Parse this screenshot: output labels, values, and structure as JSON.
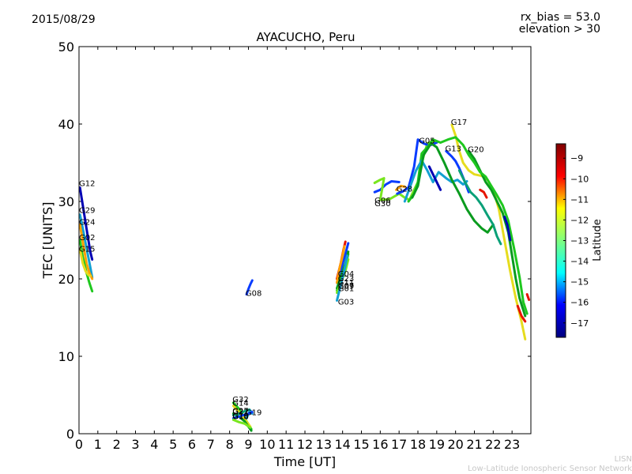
{
  "header": {
    "date": "2015/08/29",
    "rx_bias": "rx_bias = 53.0",
    "elevation": "elevation > 30"
  },
  "footer": {
    "org_short": "LISN",
    "org_long": "Low-Latitude Ionospheric Sensor Network"
  },
  "colors": {
    "c_dblue": "#0000b4",
    "c_blue": "#0a3cff",
    "c_cyan": "#12a0d2",
    "c_teal": "#0aa078",
    "c_dgreen": "#0a9b1e",
    "c_green": "#1ec81e",
    "c_lgreen": "#78e61e",
    "c_yellow": "#e6dc1e",
    "c_orange": "#ffa000",
    "c_red": "#e61400"
  },
  "chart_data": {
    "type": "line",
    "title": "AYACUCHO, Peru",
    "xlabel": "Time [UT]",
    "ylabel": "TEC [UNITS]",
    "xlim": [
      0,
      24
    ],
    "ylim": [
      0,
      50
    ],
    "xticks": [
      "0",
      "1",
      "2",
      "3",
      "4",
      "5",
      "6",
      "7",
      "8",
      "9",
      "10",
      "11",
      "12",
      "13",
      "14",
      "15",
      "16",
      "17",
      "18",
      "19",
      "20",
      "21",
      "22",
      "23"
    ],
    "yticks": [
      "0",
      "10",
      "20",
      "30",
      "40",
      "50"
    ],
    "colorbar": {
      "label": "Latitude",
      "ticks": [
        "-9",
        "-10",
        "-11",
        "-12",
        "-13",
        "-14",
        "-15",
        "-16",
        "-17"
      ],
      "tick_values": [
        -9,
        -10,
        -11,
        -12,
        -13,
        -14,
        -15,
        -16,
        -17
      ],
      "range": [
        -17.7,
        -8.3
      ],
      "stops": [
        "#00007f",
        "#0000ff",
        "#00ffff",
        "#7fff7f",
        "#ffff00",
        "#ff0000",
        "#7f0000"
      ]
    },
    "series": [
      {
        "name": "G12",
        "color": "c_dblue",
        "label_at": [
          0.0,
          32.0
        ],
        "points": [
          [
            0.05,
            31.8
          ],
          [
            0.2,
            29.5
          ],
          [
            0.4,
            26.5
          ],
          [
            0.6,
            23.5
          ],
          [
            0.7,
            22.5
          ]
        ]
      },
      {
        "name": "G29",
        "color": "c_cyan",
        "label_at": [
          0.0,
          28.5
        ],
        "points": [
          [
            0.05,
            28.3
          ],
          [
            0.2,
            26.5
          ],
          [
            0.4,
            24.0
          ],
          [
            0.6,
            21.5
          ],
          [
            0.7,
            20.2
          ]
        ]
      },
      {
        "name": "G24",
        "color": "c_orange",
        "label_at": [
          0.0,
          27.0
        ],
        "points": [
          [
            0.05,
            27.0
          ],
          [
            0.2,
            24.8
          ],
          [
            0.4,
            22.0
          ],
          [
            0.55,
            20.8
          ],
          [
            0.7,
            20.0
          ]
        ]
      },
      {
        "name": "G02",
        "color": "c_green",
        "label_at": [
          0.0,
          25.0
        ],
        "points": [
          [
            0.05,
            25.0
          ],
          [
            0.2,
            22.8
          ],
          [
            0.4,
            20.8
          ],
          [
            0.55,
            19.5
          ],
          [
            0.7,
            18.4
          ]
        ]
      },
      {
        "name": "G15",
        "color": "c_yellow",
        "label_at": [
          0.0,
          23.5
        ],
        "points": [
          [
            0.05,
            23.8
          ],
          [
            0.2,
            22.0
          ],
          [
            0.35,
            21.0
          ],
          [
            0.5,
            20.5
          ],
          [
            0.6,
            20.4
          ]
        ]
      },
      {
        "name": "G08",
        "color": "c_blue",
        "label_at": [
          8.85,
          17.8
        ],
        "points": [
          [
            8.9,
            18.0
          ],
          [
            9.0,
            18.7
          ],
          [
            9.1,
            19.3
          ],
          [
            9.2,
            19.8
          ]
        ]
      },
      {
        "name": "G32",
        "color": "c_green",
        "label_at": [
          8.15,
          4.1
        ],
        "points": [
          [
            8.2,
            4.0
          ],
          [
            8.5,
            3.2
          ],
          [
            8.8,
            2.0
          ],
          [
            9.0,
            1.2
          ],
          [
            9.15,
            0.6
          ]
        ]
      },
      {
        "name": "G14",
        "color": "c_yellow",
        "label_at": [
          8.15,
          3.6
        ],
        "points": [
          [
            8.2,
            3.6
          ],
          [
            8.5,
            2.8
          ],
          [
            8.8,
            1.9
          ],
          [
            9.1,
            0.9
          ]
        ]
      },
      {
        "name": "G22",
        "color": "c_dgreen",
        "label_at": [
          8.15,
          2.5
        ],
        "points": [
          [
            8.2,
            2.6
          ],
          [
            8.5,
            2.2
          ],
          [
            8.8,
            1.6
          ],
          [
            9.15,
            0.4
          ]
        ]
      },
      {
        "name": "G27",
        "color": "c_teal",
        "label_at": [
          8.15,
          2.6
        ],
        "points": [
          [
            8.2,
            2.4
          ],
          [
            8.5,
            2.6
          ],
          [
            8.8,
            2.9
          ],
          [
            9.05,
            3.1
          ]
        ]
      },
      {
        "name": "G19",
        "color": "c_cyan",
        "label_at": [
          8.85,
          2.4
        ],
        "points": [
          [
            8.9,
            2.0
          ],
          [
            9.0,
            2.6
          ],
          [
            9.1,
            3.0
          ],
          [
            9.2,
            2.6
          ]
        ]
      },
      {
        "name": "G18",
        "color": "c_blue",
        "label_at": [
          8.15,
          1.9
        ],
        "points": [
          [
            8.2,
            2.0
          ],
          [
            8.6,
            2.3
          ],
          [
            9.0,
            2.6
          ],
          [
            9.2,
            2.8
          ]
        ]
      },
      {
        "name": "G16",
        "color": "c_lgreen",
        "label_at": [
          8.15,
          2.0
        ],
        "points": [
          [
            8.2,
            1.8
          ],
          [
            8.5,
            1.5
          ],
          [
            8.8,
            1.3
          ],
          [
            9.1,
            0.8
          ]
        ]
      },
      {
        "name": "G04",
        "color": "c_red",
        "label_at": [
          13.75,
          20.3
        ],
        "points": [
          [
            13.7,
            20.0
          ],
          [
            13.9,
            22.0
          ],
          [
            14.05,
            23.8
          ],
          [
            14.15,
            24.8
          ]
        ]
      },
      {
        "name": "G23",
        "color": "c_blue",
        "label_at": [
          13.75,
          19.7
        ],
        "points": [
          [
            13.7,
            19.5
          ],
          [
            13.95,
            21.5
          ],
          [
            14.15,
            23.2
          ],
          [
            14.3,
            24.6
          ]
        ]
      },
      {
        "name": "G11",
        "color": "c_orange",
        "label_at": [
          13.75,
          19.2
        ],
        "points": [
          [
            13.7,
            19.5
          ],
          [
            13.85,
            21.5
          ],
          [
            14.0,
            23.0
          ],
          [
            14.1,
            24.2
          ]
        ]
      },
      {
        "name": "G07",
        "color": "c_green",
        "label_at": [
          13.75,
          18.8
        ],
        "points": [
          [
            13.7,
            18.5
          ],
          [
            13.95,
            20.0
          ],
          [
            14.15,
            21.5
          ],
          [
            14.3,
            23.2
          ]
        ]
      },
      {
        "name": "G09",
        "color": "c_dgreen",
        "label_at": [
          13.75,
          18.7
        ],
        "points": [
          [
            13.7,
            18.8
          ],
          [
            13.95,
            20.6
          ],
          [
            14.15,
            22.0
          ],
          [
            14.3,
            23.5
          ]
        ]
      },
      {
        "name": "G01",
        "color": "c_lgreen",
        "label_at": [
          13.75,
          18.4
        ],
        "points": [
          [
            13.7,
            18.2
          ],
          [
            13.95,
            19.8
          ],
          [
            14.15,
            21.0
          ],
          [
            14.3,
            22.5
          ]
        ]
      },
      {
        "name": "G03",
        "color": "c_cyan",
        "label_at": [
          13.75,
          16.7
        ],
        "points": [
          [
            13.7,
            17.2
          ],
          [
            13.9,
            19.2
          ],
          [
            14.1,
            21.2
          ],
          [
            14.25,
            23.0
          ]
        ]
      },
      {
        "name": "G06",
        "color": "c_blue",
        "label_at": [
          15.7,
          29.8
        ],
        "points": [
          [
            15.7,
            31.2
          ],
          [
            16.0,
            31.5
          ],
          [
            16.3,
            32.2
          ],
          [
            16.6,
            32.6
          ],
          [
            17.0,
            32.5
          ]
        ]
      },
      {
        "name": "G30",
        "color": "c_lgreen",
        "label_at": [
          15.7,
          29.4
        ],
        "points": [
          [
            15.7,
            32.4
          ],
          [
            16.0,
            32.8
          ],
          [
            16.2,
            33.0
          ],
          [
            16.0,
            30.2
          ],
          [
            16.5,
            30.3
          ],
          [
            17.0,
            31.0
          ],
          [
            17.3,
            30.5
          ],
          [
            17.55,
            30.2
          ],
          [
            17.8,
            31.5
          ],
          [
            18.0,
            32.5
          ],
          [
            18.2,
            35.0
          ],
          [
            18.5,
            37.5
          ],
          [
            18.8,
            37.8
          ],
          [
            19.0,
            37.6
          ]
        ]
      },
      {
        "name": "G28",
        "color": "c_orange",
        "label_at": [
          16.85,
          31.3
        ],
        "points": [
          [
            16.85,
            31.5
          ],
          [
            17.1,
            32.0
          ],
          [
            17.3,
            31.9
          ]
        ]
      },
      {
        "name": "G05",
        "color": "c_blue",
        "label_at": [
          18.05,
          37.5
        ],
        "points": [
          [
            16.9,
            31.0
          ],
          [
            17.2,
            31.3
          ],
          [
            17.5,
            31.8
          ],
          [
            17.8,
            34.5
          ],
          [
            18.0,
            38.0
          ],
          [
            18.3,
            37.5
          ],
          [
            18.6,
            37.2
          ],
          [
            19.0,
            37.6
          ]
        ]
      },
      {
        "name": "G17",
        "color": "c_yellow",
        "label_at": [
          19.75,
          39.9
        ],
        "points": [
          [
            19.8,
            39.9
          ],
          [
            20.0,
            38.5
          ],
          [
            20.2,
            36.5
          ],
          [
            20.4,
            35.0
          ],
          [
            20.7,
            34.0
          ],
          [
            21.0,
            33.5
          ],
          [
            21.4,
            33.3
          ],
          [
            21.7,
            32.8
          ],
          [
            22.0,
            31.5
          ],
          [
            22.3,
            29.0
          ],
          [
            22.6,
            25.0
          ],
          [
            22.9,
            21.0
          ],
          [
            23.2,
            17.5
          ],
          [
            23.5,
            14.5
          ],
          [
            23.7,
            12.2
          ]
        ]
      },
      {
        "name": "G13",
        "color": "c_blue",
        "label_at": [
          19.45,
          36.5
        ],
        "points": [
          [
            19.5,
            36.5
          ],
          [
            19.8,
            35.8
          ],
          [
            20.0,
            35.2
          ],
          [
            20.2,
            34.3
          ],
          [
            20.5,
            32.5
          ],
          [
            20.7,
            31.2
          ]
        ]
      },
      {
        "name": "G20",
        "color": "c_dgreen",
        "label_at": [
          20.65,
          36.4
        ],
        "points": [
          [
            20.7,
            36.5
          ],
          [
            21.0,
            35.5
          ],
          [
            21.3,
            34.0
          ],
          [
            21.6,
            32.5
          ],
          [
            21.9,
            31.5
          ],
          [
            22.2,
            30.0
          ],
          [
            22.5,
            28.5
          ],
          [
            22.8,
            26.0
          ],
          [
            23.0,
            23.0
          ],
          [
            23.2,
            20.0
          ],
          [
            23.4,
            17.5
          ],
          [
            23.7,
            15.2
          ]
        ]
      },
      {
        "name": "",
        "color": "c_green",
        "points": [
          [
            17.5,
            30.0
          ],
          [
            17.8,
            31.0
          ],
          [
            18.0,
            32.5
          ],
          [
            18.2,
            36.2
          ],
          [
            18.5,
            37.0
          ],
          [
            18.8,
            38.0
          ],
          [
            19.2,
            37.6
          ],
          [
            19.6,
            38.0
          ],
          [
            20.0,
            38.3
          ],
          [
            20.4,
            37.3
          ],
          [
            20.7,
            36.0
          ],
          [
            21.0,
            35.0
          ],
          [
            21.3,
            33.8
          ],
          [
            21.6,
            33.2
          ],
          [
            21.9,
            32.0
          ],
          [
            22.2,
            30.8
          ],
          [
            22.5,
            29.5
          ],
          [
            22.8,
            27.5
          ],
          [
            23.1,
            24.0
          ],
          [
            23.4,
            20.2
          ],
          [
            23.6,
            17.0
          ],
          [
            23.8,
            15.5
          ]
        ]
      },
      {
        "name": "",
        "color": "c_cyan",
        "points": [
          [
            17.3,
            30.0
          ],
          [
            17.6,
            32.0
          ],
          [
            17.9,
            34.0
          ],
          [
            18.2,
            35.3
          ],
          [
            18.5,
            34.0
          ],
          [
            18.8,
            32.5
          ],
          [
            19.1,
            33.8
          ],
          [
            19.5,
            33.0
          ],
          [
            19.8,
            32.5
          ],
          [
            20.1,
            32.8
          ],
          [
            20.4,
            32.2
          ],
          [
            20.6,
            32.6
          ]
        ]
      },
      {
        "name": "",
        "color": "c_dgreen",
        "points": [
          [
            17.7,
            30.5
          ],
          [
            18.0,
            32.0
          ],
          [
            18.3,
            36.0
          ],
          [
            18.7,
            37.5
          ],
          [
            19.0,
            37.0
          ],
          [
            19.4,
            35.0
          ],
          [
            19.8,
            32.8
          ],
          [
            20.2,
            31.0
          ],
          [
            20.6,
            29.0
          ],
          [
            21.0,
            27.5
          ],
          [
            21.4,
            26.5
          ],
          [
            21.7,
            26.0
          ],
          [
            22.0,
            27.0
          ]
        ]
      },
      {
        "name": "",
        "color": "c_teal",
        "points": [
          [
            20.2,
            34.0
          ],
          [
            20.5,
            32.5
          ],
          [
            20.8,
            31.2
          ],
          [
            21.1,
            30.5
          ],
          [
            21.4,
            29.5
          ],
          [
            21.7,
            28.2
          ],
          [
            22.0,
            27.0
          ],
          [
            22.2,
            25.5
          ],
          [
            22.4,
            24.5
          ]
        ]
      },
      {
        "name": "",
        "color": "c_red",
        "points": [
          [
            21.3,
            31.5
          ],
          [
            21.5,
            31.2
          ],
          [
            21.65,
            30.5
          ]
        ]
      },
      {
        "name": "",
        "color": "c_dblue",
        "points": [
          [
            22.6,
            28.0
          ],
          [
            22.75,
            27.0
          ],
          [
            22.9,
            25.0
          ]
        ]
      },
      {
        "name": "",
        "color": "c_dblue",
        "points": [
          [
            18.6,
            34.5
          ],
          [
            18.9,
            33.0
          ],
          [
            19.2,
            31.5
          ]
        ]
      },
      {
        "name": "",
        "color": "c_red",
        "points": [
          [
            23.3,
            16.5
          ],
          [
            23.5,
            15.2
          ],
          [
            23.7,
            14.5
          ]
        ]
      },
      {
        "name": "",
        "color": "c_red",
        "points": [
          [
            23.8,
            18.0
          ],
          [
            23.9,
            17.3
          ]
        ]
      }
    ]
  }
}
